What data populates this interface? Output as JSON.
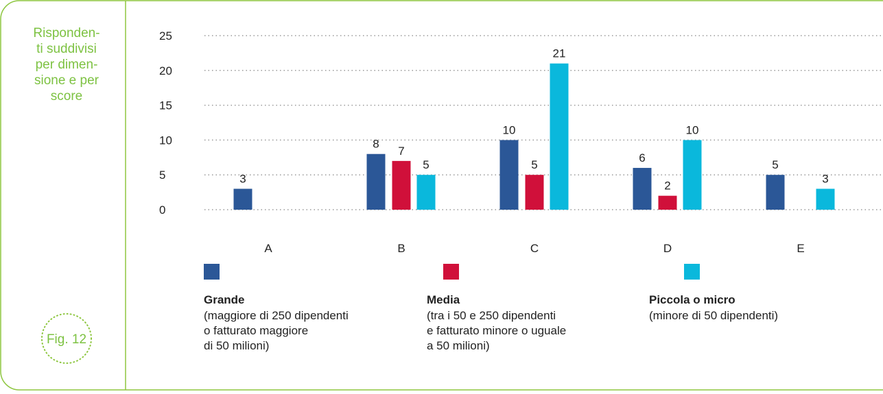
{
  "side": {
    "caption_lines": [
      "Risponden-",
      "ti suddivisi",
      "per dimen-",
      "sione e per",
      "score"
    ],
    "figure": "Fig. 12"
  },
  "chart_data": {
    "type": "bar",
    "categories": [
      "A",
      "B",
      "C",
      "D",
      "E"
    ],
    "series": [
      {
        "name": "Grande",
        "description": [
          "(maggiore di 250 dipendenti",
          "o fatturato maggiore",
          "di 50 milioni)"
        ],
        "color": "#2b5797",
        "values": [
          3,
          8,
          10,
          6,
          5
        ]
      },
      {
        "name": "Media",
        "description": [
          "(tra i 50 e 250 dipendenti",
          "e fatturato minore o uguale",
          "a 50 milioni)"
        ],
        "color": "#d0103a",
        "values": [
          null,
          7,
          5,
          2,
          null
        ]
      },
      {
        "name": "Piccola o micro",
        "description": [
          "(minore di 50 dipendenti)"
        ],
        "color": "#0ab8dc",
        "values": [
          null,
          5,
          21,
          10,
          3
        ]
      }
    ],
    "ylim": [
      0,
      25
    ],
    "yticks": [
      0,
      5,
      10,
      15,
      20,
      25
    ],
    "grid": true
  }
}
